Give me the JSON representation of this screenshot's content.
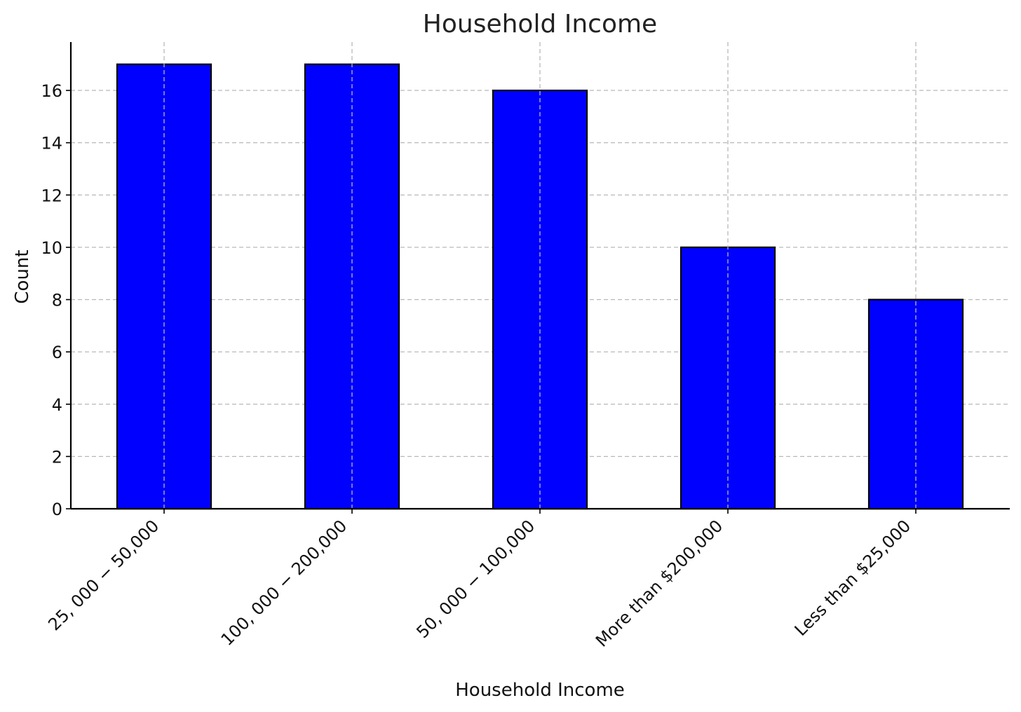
{
  "chart_data": {
    "type": "bar",
    "title": "Household Income",
    "xlabel": "Household Income",
    "ylabel": "Count",
    "categories": [
      "25, 000 − 50,000",
      "100, 000 − 200,000",
      "50, 000 − 100,000",
      "More than $200,000",
      "Less than $25,000"
    ],
    "values": [
      17,
      17,
      16,
      10,
      8
    ],
    "ylim": [
      0,
      17.85
    ],
    "yticks": [
      0,
      2,
      4,
      6,
      8,
      10,
      12,
      14,
      16
    ],
    "grid": true,
    "bar_color": "#0000ff",
    "edge_color": "#000000"
  }
}
